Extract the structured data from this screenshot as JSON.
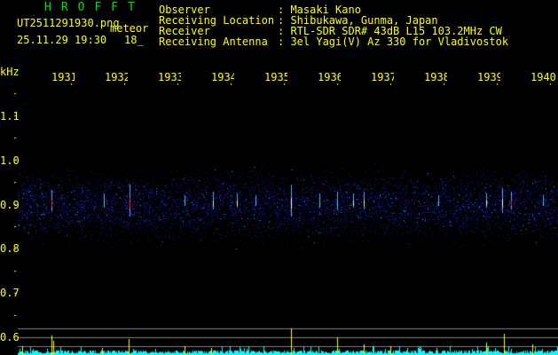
{
  "header": {
    "title": "HROFFT",
    "filename": "UT2511291930.png",
    "mode": "meteor",
    "datetime": "25.11.29 19:30",
    "count": "18_"
  },
  "station": [
    {
      "label": "Observer",
      "value": ": Masaki Kano"
    },
    {
      "label": "Receiving Location",
      "value": ": Shibukawa, Gunma, Japan"
    },
    {
      "label": "Receiver",
      "value": ": RTL-SDR SDR# 43dB L15 103.2MHz CW"
    },
    {
      "label": "Receiving Antenna",
      "value": ": 3el Yagi(V) Az 330 for Vladivostok"
    }
  ],
  "axes": {
    "y_unit": "kHz",
    "y_ticks": [
      "1.1",
      "1.0",
      "0.9",
      "0.8",
      "0.7",
      "0.6"
    ],
    "x_ticks": [
      "1931",
      "1932",
      "1933",
      "1934",
      "1935",
      "1936",
      "1937",
      "1938",
      "1939",
      "1940"
    ]
  },
  "colors": {
    "text": "#ffff00",
    "title": "#00e000",
    "noise": "#2020ff",
    "baseline": "#00ffff"
  }
}
